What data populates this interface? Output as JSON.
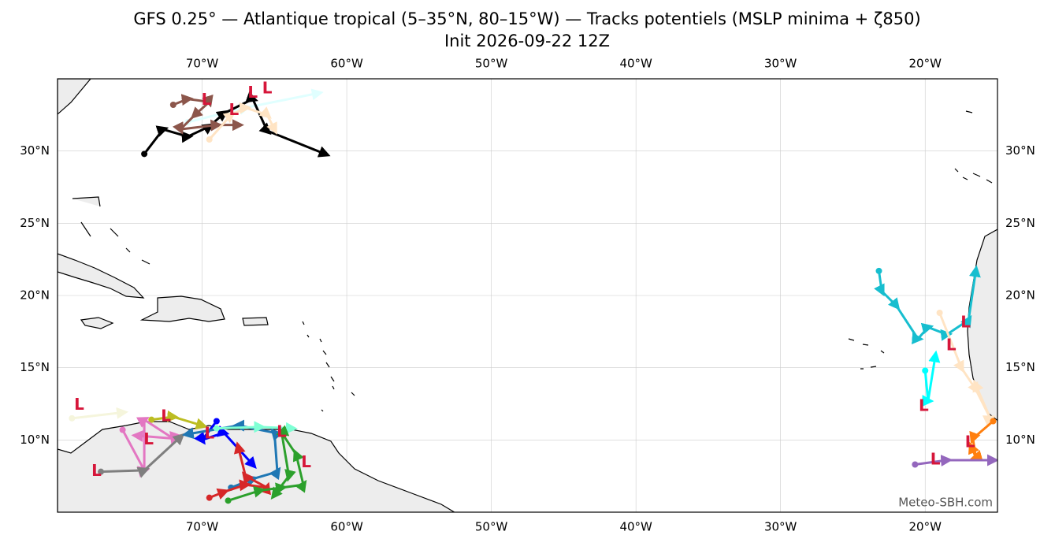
{
  "title": "GFS 0.25° — Atlantique tropical (5–35°N, 80–15°W) — Tracks potentiels (MSLP minima + ζ850)",
  "subtitle": "Init 2026-09-22 12Z",
  "credit": "Meteo-SBH.com",
  "map": {
    "lonlim": [
      -80,
      -15
    ],
    "latlim": [
      5,
      35
    ],
    "lonticks": [
      {
        "value": -70,
        "label": "70°W"
      },
      {
        "value": -60,
        "label": "60°W"
      },
      {
        "value": -50,
        "label": "50°W"
      },
      {
        "value": -40,
        "label": "40°W"
      },
      {
        "value": -30,
        "label": "30°W"
      },
      {
        "value": -20,
        "label": "20°W"
      }
    ],
    "latticks": [
      {
        "value": 10,
        "label": "10°N"
      },
      {
        "value": 15,
        "label": "15°N"
      },
      {
        "value": 20,
        "label": "20°N"
      },
      {
        "value": 25,
        "label": "25°N"
      },
      {
        "value": 30,
        "label": "30°N"
      }
    ],
    "low_symbol": "L",
    "tracks": [
      {
        "color": "#e0ffff",
        "lon": [
          -71,
          -67,
          -62
        ],
        "lat": [
          32,
          33,
          34
        ],
        "lows": []
      },
      {
        "color": "#000000",
        "lon": [
          -74,
          -72.7,
          -71,
          -69.5,
          -68.5,
          -66.5,
          -65.5,
          -61.5
        ],
        "lat": [
          29.8,
          31.5,
          31,
          31.7,
          32.6,
          33.6,
          31.4,
          29.8
        ],
        "lows": [
          [
            -66.5,
            34
          ],
          [
            -65.5,
            34.3
          ]
        ]
      },
      {
        "color": "#8c564b",
        "lon": [
          -72,
          -71,
          -69.5,
          -70.5,
          -71.5,
          -69,
          -67.5
        ],
        "lat": [
          33.2,
          33.6,
          33.4,
          32.5,
          31.5,
          31.8,
          31.8
        ],
        "lows": [
          [
            -69.7,
            33.5
          ]
        ]
      },
      {
        "color": "#ffe4c4",
        "lon": [
          -69.5,
          -68,
          -67,
          -65.5,
          -65
        ],
        "lat": [
          30.8,
          32.5,
          33,
          32.5,
          31.5
        ],
        "lows": [
          [
            -67.8,
            32.8
          ]
        ]
      },
      {
        "color": "#f5f5dc",
        "lon": [
          -79,
          -75.5
        ],
        "lat": [
          11.5,
          11.9
        ],
        "lows": [
          [
            -78.5,
            12.4
          ]
        ]
      },
      {
        "color": "#bcbd22",
        "lon": [
          -73.5,
          -72,
          -70
        ],
        "lat": [
          11.4,
          11.6,
          11
        ],
        "lows": [
          [
            -72.5,
            11.6
          ]
        ]
      },
      {
        "color": "#e377c2",
        "lon": [
          -75.5,
          -74,
          -74,
          -72,
          -74.5
        ],
        "lat": [
          10.7,
          7.9,
          11.4,
          10.1,
          10.3
        ],
        "lows": [
          [
            -73.7,
            10
          ]
        ]
      },
      {
        "color": "#7f7f7f",
        "lon": [
          -77,
          -74,
          -71.5
        ],
        "lat": [
          7.8,
          7.9,
          10.2
        ],
        "lows": [
          [
            -77.3,
            7.8
          ]
        ]
      },
      {
        "color": "#0000ff",
        "lon": [
          -69,
          -70,
          -68.5,
          -66.5
        ],
        "lat": [
          11.3,
          10,
          10.5,
          8.3
        ],
        "lows": [
          [
            -69.5,
            10.4
          ]
        ]
      },
      {
        "color": "#1f77b4",
        "lon": [
          -68,
          -66.5,
          -64.8,
          -65,
          -67.5,
          -71
        ],
        "lat": [
          6.7,
          7.3,
          7.8,
          10.5,
          11,
          10.4
        ],
        "lows": []
      },
      {
        "color": "#7fffd4",
        "lon": [
          -69,
          -66,
          -63.8
        ],
        "lat": [
          10.8,
          10.9,
          10.8
        ],
        "lows": [
          [
            -64.5,
            10.5
          ]
        ]
      },
      {
        "color": "#d62728",
        "lon": [
          -69.5,
          -68.5,
          -67,
          -65.5,
          -67,
          -67.5
        ],
        "lat": [
          6,
          6.4,
          6.9,
          6.7,
          7.5,
          9.5
        ],
        "lows": []
      },
      {
        "color": "#2ca02c",
        "lon": [
          -68.2,
          -66,
          -64.5,
          -63,
          -63.5,
          -64.5,
          -64,
          -65
        ],
        "lat": [
          5.8,
          6.5,
          6.7,
          6.9,
          9,
          10.5,
          7.5,
          6.2
        ],
        "lows": [
          [
            -62.8,
            8.4
          ]
        ]
      },
      {
        "color": "#17becf",
        "lon": [
          -23.2,
          -23,
          -22,
          -20.5,
          -19.8,
          -18.5,
          -17,
          -16.5
        ],
        "lat": [
          21.7,
          20.3,
          19.3,
          17,
          17.8,
          17.3,
          18.3,
          21.7
        ],
        "lows": [
          [
            -17.2,
            18.1
          ]
        ]
      },
      {
        "color": "#00ffff",
        "lon": [
          -20,
          -19.8,
          -19.3
        ],
        "lat": [
          14.8,
          12.7,
          15.8
        ],
        "lows": [
          [
            -20.1,
            12.3
          ]
        ]
      },
      {
        "color": "#ffe4c4",
        "lon": [
          -19,
          -17.5,
          -16.5,
          -15.5,
          -16.5
        ],
        "lat": [
          18.8,
          15,
          13.5,
          11.5,
          13.8
        ],
        "lows": [
          [
            -18.2,
            16.5
          ]
        ]
      },
      {
        "color": "#ff7f0e",
        "lon": [
          -15.3,
          -16.7,
          -16.5,
          -16.8
        ],
        "lat": [
          11.3,
          10.1,
          8.8,
          9.5
        ],
        "lows": [
          [
            -16.9,
            9.8
          ]
        ]
      },
      {
        "color": "#9467bd",
        "lon": [
          -20.7,
          -18.5,
          -15.3
        ],
        "lat": [
          8.3,
          8.6,
          8.6
        ],
        "lows": [
          [
            -19.3,
            8.6
          ]
        ]
      }
    ]
  }
}
